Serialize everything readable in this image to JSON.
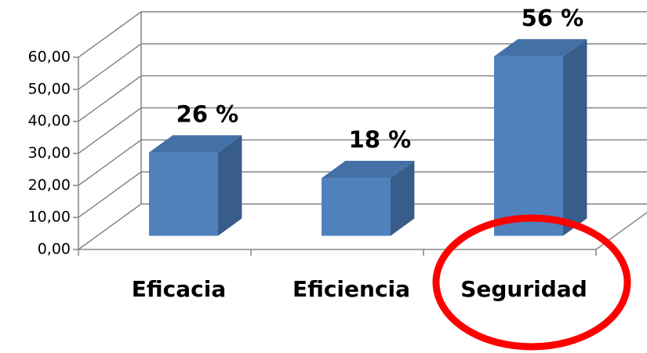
{
  "chart_data": {
    "type": "bar3d",
    "categories": [
      "Eficacia",
      "Eficiencia",
      "Seguridad"
    ],
    "values": [
      26,
      18,
      56
    ],
    "value_labels": [
      "26 %",
      "18 %",
      "56 %"
    ],
    "color": "#4f81bd",
    "ylim": [
      0,
      60
    ],
    "yticks": [
      {
        "value": 0,
        "label": "0,00"
      },
      {
        "value": 10,
        "label": "10,00"
      },
      {
        "value": 20,
        "label": "20,00"
      },
      {
        "value": 30,
        "label": "30,00"
      },
      {
        "value": 40,
        "label": "40,00"
      },
      {
        "value": 50,
        "label": "50,00"
      },
      {
        "value": 60,
        "label": "60,00"
      }
    ],
    "grid": true
  }
}
